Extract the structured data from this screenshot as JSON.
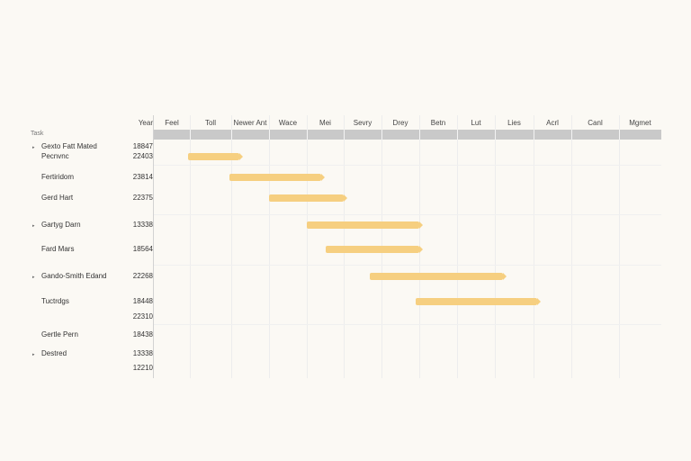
{
  "left_panel": {
    "header_label": "Task",
    "year_header": "Year"
  },
  "timeline": {
    "columns": [
      "Feel",
      "Toll",
      "Newer Ant",
      "Wace",
      "Mei",
      "Sevry",
      "Drey",
      "Betn",
      "Lut",
      "Lies",
      "Acrl",
      "Canl",
      "Mgmet"
    ]
  },
  "tasks": [
    {
      "name": "Gexto Fatt Mated",
      "code": "18847",
      "group": true,
      "start": 0,
      "end": 0
    },
    {
      "name": "Pecnvnc",
      "code": "22403",
      "group": false,
      "start": 0.95,
      "end": 2.3
    },
    {
      "name": "Fertiridom",
      "code": "23814",
      "group": false,
      "start": 1.95,
      "end": 4.5
    },
    {
      "name": "Gerd Hart",
      "code": "22375",
      "group": false,
      "start": 3.0,
      "end": 5.1
    },
    {
      "name": "Gartyg Darn",
      "code": "13338",
      "group": true,
      "start": 4.0,
      "end": 7.1
    },
    {
      "name": "Fard Mars",
      "code": "18564",
      "group": false,
      "start": 4.5,
      "end": 7.1
    },
    {
      "name": "Gando-Smith Edand",
      "code": "22268",
      "group": true,
      "start": 5.7,
      "end": 9.3
    },
    {
      "name": "Tuctrdgs",
      "code": "18448",
      "group": false,
      "start": 6.9,
      "end": 10.2
    },
    {
      "name": "",
      "code": "22310",
      "group": false,
      "start": 0,
      "end": 0
    },
    {
      "name": "Gertle Pern",
      "code": "18438",
      "group": false,
      "start": 0,
      "end": 0
    },
    {
      "name": "Destred",
      "code": "13338",
      "group": true,
      "start": 0,
      "end": 0
    },
    {
      "name": "",
      "code": "12210",
      "group": false,
      "start": 0,
      "end": 0
    }
  ],
  "colors": {
    "bar": "#f6cf80",
    "header_band": "#c9c9c9",
    "background": "#fbf9f4"
  },
  "icons": {
    "group_toggle": "expand-triangle-icon"
  }
}
